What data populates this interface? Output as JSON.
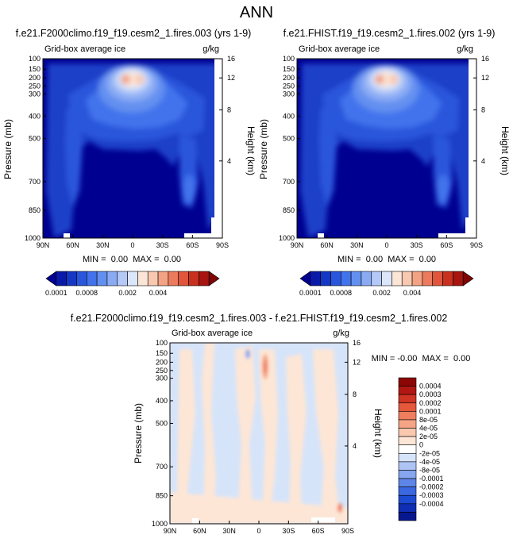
{
  "page": {
    "title": "ANN"
  },
  "colors": {
    "ice_scale": [
      "#000090",
      "#0a1aa8",
      "#1437c4",
      "#2a56dc",
      "#4273ec",
      "#6390f0",
      "#8aabf4",
      "#b4c9f8",
      "#dce6fa",
      "#fbe5d6",
      "#f8c8b1",
      "#f3a284",
      "#ec7a5c",
      "#e0553b",
      "#c83020",
      "#a71510",
      "#7e0606"
    ],
    "diff_scale": [
      "#08178f",
      "#102eb4",
      "#1c4ad3",
      "#3a68e0",
      "#5e86e8",
      "#86a6ef",
      "#adc4f5",
      "#d6e4fa",
      "#ffffff",
      "#fde6d6",
      "#f9c8ae",
      "#f5a585",
      "#ef7e5e",
      "#e5583c",
      "#cf3323",
      "#b01612",
      "#8c0606"
    ]
  },
  "chart_data": [
    {
      "type": "heatmap",
      "title": "f.e21.F2000climo.f19_f19.cesm2_1.fires.003 (yrs 1-9)",
      "subtitle_left": "Grid-box average ice",
      "subtitle_right": "g/kg",
      "ylabel": "Pressure (mb)",
      "y2label": "Height (km)",
      "x_ticks": [
        "90N",
        "60N",
        "30N",
        "0",
        "30S",
        "60S",
        "90S"
      ],
      "y_ticks": [
        "100",
        "150",
        "200",
        "250",
        "300",
        "400",
        "500",
        "700",
        "850",
        "1000"
      ],
      "y2_ticks": [
        "16",
        "12",
        "8",
        "4"
      ],
      "min_max": "MIN =  0.00  MAX =  0.00",
      "colorbar_labels": [
        "0.0001",
        "0.0008",
        "0.002",
        "0.004"
      ]
    },
    {
      "type": "heatmap",
      "title": "f.e21.FHIST.f19_f19.cesm2_1.fires.002 (yrs 1-9)",
      "subtitle_left": "Grid-box average ice",
      "subtitle_right": "g/kg",
      "ylabel": "Pressure (mb)",
      "y2label": "Height (km)",
      "x_ticks": [
        "90N",
        "60N",
        "30N",
        "0",
        "30S",
        "60S",
        "90S"
      ],
      "y_ticks": [
        "100",
        "150",
        "200",
        "250",
        "300",
        "400",
        "500",
        "700",
        "850",
        "1000"
      ],
      "y2_ticks": [
        "16",
        "12",
        "8",
        "4"
      ],
      "min_max": "MIN =  0.00  MAX =  0.00",
      "colorbar_labels": [
        "0.0001",
        "0.0008",
        "0.002",
        "0.004"
      ]
    },
    {
      "type": "heatmap",
      "title": "f.e21.F2000climo.f19_f19.cesm2_1.fires.003 - f.e21.FHIST.f19_f19.cesm2_1.fires.002",
      "subtitle_left": "Grid-box average ice",
      "subtitle_right": "g/kg",
      "ylabel": "Pressure (mb)",
      "y2label": "Height (km)",
      "x_ticks": [
        "90N",
        "60N",
        "30N",
        "0",
        "30S",
        "60S",
        "90S"
      ],
      "y_ticks": [
        "100",
        "150",
        "200",
        "250",
        "300",
        "400",
        "500",
        "700",
        "850",
        "1000"
      ],
      "y2_ticks": [
        "16",
        "12",
        "8",
        "4"
      ],
      "min_max": "MIN = -0.00  MAX =  0.00",
      "colorbar_labels": [
        "0.0004",
        "0.0003",
        "0.0002",
        "0.0001",
        "8e-05",
        "4e-05",
        "2e-05",
        "0",
        "-2e-05",
        "-4e-05",
        "-8e-05",
        "-0.0001",
        "-0.0002",
        "-0.0003",
        "-0.0004"
      ]
    }
  ]
}
